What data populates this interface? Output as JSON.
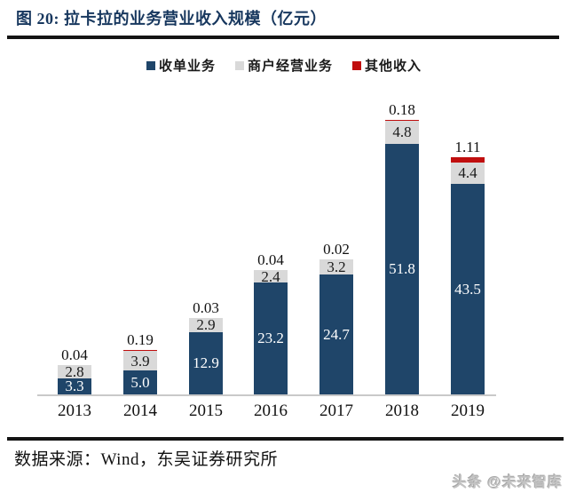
{
  "figure": {
    "title": "图 20:  拉卡拉的业务营业收入规模（亿元）",
    "source": "数据来源：Wind，东吴证券研究所",
    "watermark": "头条 @未来智库"
  },
  "legend": [
    {
      "label": "收单业务",
      "color": "#1f4569"
    },
    {
      "label": "商户经营业务",
      "color": "#d9d9d9"
    },
    {
      "label": "其他收入",
      "color": "#c00e0e"
    }
  ],
  "chart_data": {
    "type": "bar",
    "stacked": true,
    "title": "拉卡拉的业务营业收入规模（亿元）",
    "unit": "亿元",
    "categories": [
      "2013",
      "2014",
      "2015",
      "2016",
      "2017",
      "2018",
      "2019"
    ],
    "series": [
      {
        "name": "收单业务",
        "color": "#1f4569",
        "values": [
          3.3,
          5.0,
          12.9,
          23.2,
          24.7,
          51.8,
          43.5
        ],
        "labels": [
          "3.3",
          "5.0",
          "12.9",
          "23.2",
          "24.7",
          "51.8",
          "43.5"
        ],
        "label_position": "inside"
      },
      {
        "name": "商户经营业务",
        "color": "#d9d9d9",
        "values": [
          2.8,
          3.9,
          2.9,
          2.4,
          3.2,
          4.8,
          4.4
        ],
        "labels": [
          "2.8",
          "3.9",
          "2.9",
          "2.4",
          "3.2",
          "4.8",
          "4.4"
        ],
        "label_position": "inside"
      },
      {
        "name": "其他收入",
        "color": "#c00e0e",
        "values": [
          0.04,
          0.19,
          0.03,
          0.04,
          0.02,
          0.18,
          1.11
        ],
        "labels": [
          "0.04",
          "0.19",
          "0.03",
          "0.04",
          "0.02",
          "0.18",
          "1.11"
        ],
        "label_position": "above"
      }
    ],
    "ylim": [
      0,
      60
    ],
    "grid": false,
    "legend_position": "top",
    "axis_line_color": "#c9c9c9"
  }
}
